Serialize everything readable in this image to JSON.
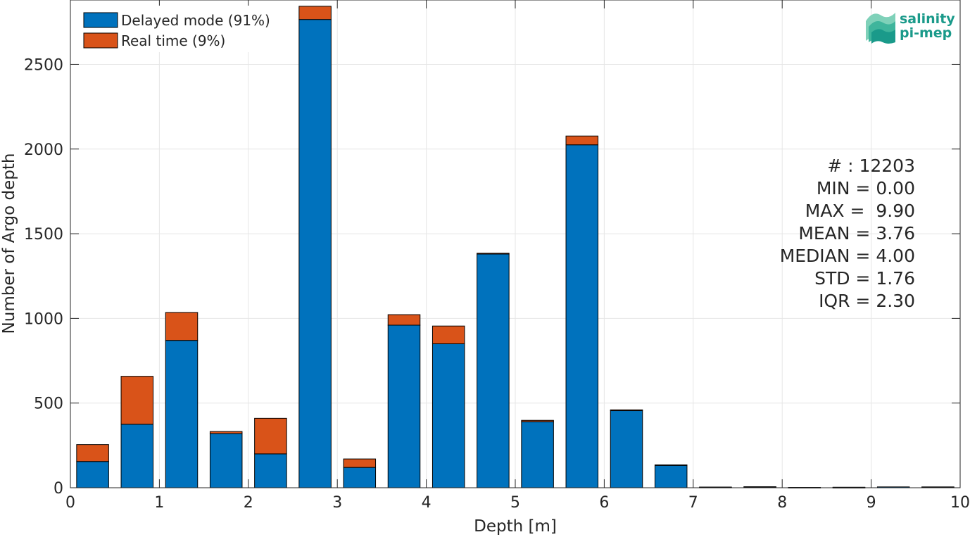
{
  "chart_data": {
    "type": "bar",
    "stacked": true,
    "xlabel": "Depth [m]",
    "ylabel": "Number of Argo depth",
    "xlim": [
      0,
      10
    ],
    "ylim": [
      0,
      2880
    ],
    "xticks": [
      "0",
      "1",
      "2",
      "3",
      "4",
      "5",
      "6",
      "7",
      "8",
      "9",
      "10"
    ],
    "yticks": [
      "0",
      "500",
      "1000",
      "1500",
      "2000",
      "2500"
    ],
    "grid": true,
    "legend_position": "top-left",
    "bin_width": 0.5,
    "bin_centers": [
      0.25,
      0.75,
      1.25,
      1.75,
      2.25,
      2.75,
      3.25,
      3.75,
      4.25,
      4.75,
      5.25,
      5.75,
      6.25,
      6.75,
      7.25,
      7.75,
      8.25,
      8.75,
      9.25,
      9.75
    ],
    "series": [
      {
        "name": "Delayed mode (91%)",
        "color": "#0072bd",
        "values": [
          155,
          375,
          870,
          320,
          200,
          2765,
          120,
          960,
          850,
          1380,
          390,
          2025,
          455,
          132,
          3,
          5,
          2,
          2,
          5,
          4
        ]
      },
      {
        "name": "Real time (9%)",
        "color": "#d95319",
        "values": [
          100,
          283,
          165,
          12,
          210,
          78,
          50,
          62,
          105,
          5,
          8,
          52,
          5,
          3,
          1,
          1,
          0,
          1,
          0,
          1
        ]
      }
    ],
    "stats": [
      "# : 12203",
      "MIN = 0.00",
      "MAX =  9.90",
      "MEAN = 3.76",
      "MEDIAN = 4.00",
      "STD = 1.76",
      "IQR = 2.30"
    ]
  },
  "logo": {
    "line1": "salinity",
    "line2": "pi-mep",
    "color": "#1a9a8a",
    "icon": "salinity-wave-logo-icon"
  }
}
